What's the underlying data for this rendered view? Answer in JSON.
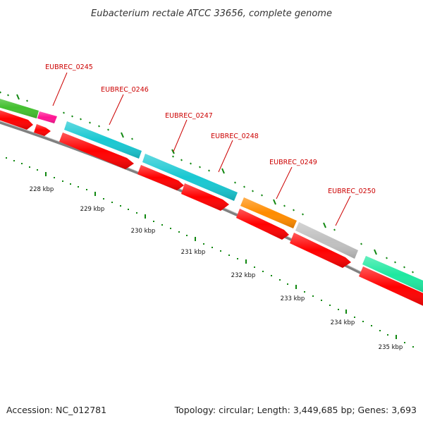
{
  "title": "Eubacterium rectale ATCC 33656, complete genome",
  "accession": "Accession: NC_012781",
  "summary": "Topology: circular; Length: 3,449,685 bp; Genes: 3,693",
  "colors": {
    "backbone": "#808080",
    "cds": "#ff0000",
    "label": "#cc0000",
    "tick": "#118811"
  },
  "genes": [
    {
      "id": "EUBREC_0245",
      "color": "#ff1493"
    },
    {
      "id": "EUBREC_0246",
      "color": "#19c8d2"
    },
    {
      "id": "EUBREC_0247",
      "color": "#19c8d2"
    },
    {
      "id": "EUBREC_0248",
      "color": "#19c8d2"
    },
    {
      "id": "EUBREC_0249",
      "color": "#ff8c00"
    },
    {
      "id": "EUBREC_0250",
      "color": "#c0c0c0"
    }
  ],
  "offscreen_genes": [
    {
      "color": "#44c030"
    },
    {
      "color": "#1ee8a0"
    }
  ],
  "scale_labels": [
    "228 kbp",
    "229 kbp",
    "230 kbp",
    "231 kbp",
    "232 kbp",
    "233 kbp",
    "234 kbp",
    "235 kbp"
  ]
}
